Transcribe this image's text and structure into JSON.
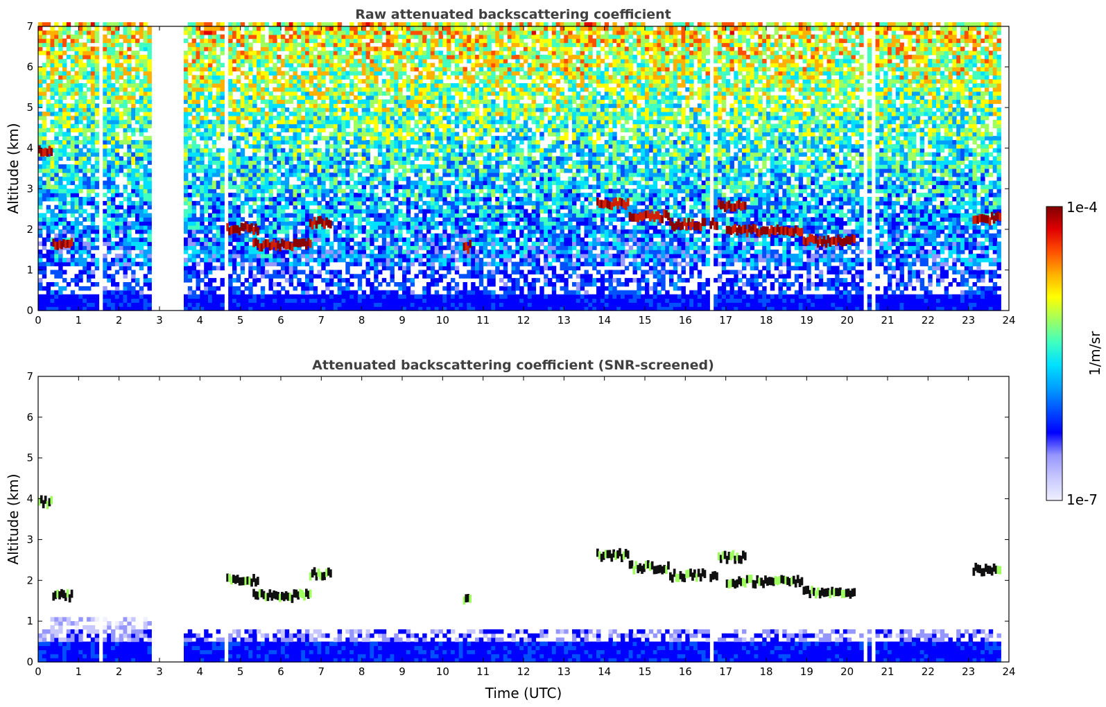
{
  "chart_data": [
    {
      "type": "heatmap",
      "title": "Raw attenuated backscattering coefficient",
      "xlabel": "",
      "ylabel": "Altitude (km)",
      "xlim": [
        0,
        24
      ],
      "ylim": [
        0,
        7
      ],
      "xticks": [
        "0",
        "1",
        "2",
        "3",
        "4",
        "5",
        "6",
        "7",
        "8",
        "9",
        "10",
        "11",
        "12",
        "13",
        "14",
        "15",
        "16",
        "17",
        "18",
        "19",
        "20",
        "21",
        "22",
        "23",
        "24"
      ],
      "yticks": [
        "0",
        "1",
        "2",
        "3",
        "4",
        "5",
        "6",
        "7"
      ],
      "screened": false,
      "cloud_layers": [
        {
          "t0": 0.0,
          "t1": 0.35,
          "alt": 3.9
        },
        {
          "t0": 0.35,
          "t1": 0.85,
          "alt": 1.6
        },
        {
          "t0": 4.65,
          "t1": 5.4,
          "alt": 2.0
        },
        {
          "t0": 5.3,
          "t1": 6.7,
          "alt": 1.6
        },
        {
          "t0": 6.7,
          "t1": 7.2,
          "alt": 2.15
        },
        {
          "t0": 10.5,
          "t1": 10.7,
          "alt": 1.55
        },
        {
          "t0": 13.8,
          "t1": 14.6,
          "alt": 2.6
        },
        {
          "t0": 14.6,
          "t1": 15.6,
          "alt": 2.3
        },
        {
          "t0": 15.6,
          "t1": 16.8,
          "alt": 2.1
        },
        {
          "t0": 16.8,
          "t1": 17.5,
          "alt": 2.55
        },
        {
          "t0": 17.0,
          "t1": 18.9,
          "alt": 1.95
        },
        {
          "t0": 18.9,
          "t1": 20.2,
          "alt": 1.7
        },
        {
          "t0": 23.1,
          "t1": 23.8,
          "alt": 2.25
        }
      ],
      "data_gaps": [
        {
          "t0": 1.45,
          "t1": 1.55
        },
        {
          "t0": 2.75,
          "t1": 3.6
        },
        {
          "t0": 4.6,
          "t1": 4.65
        },
        {
          "t0": 16.5,
          "t1": 16.6
        },
        {
          "t0": 20.35,
          "t1": 20.45
        },
        {
          "t0": 20.6,
          "t1": 20.65
        }
      ],
      "data_end_hour": 23.8
    },
    {
      "type": "heatmap",
      "title": "Attenuated backscattering coefficient (SNR-screened)",
      "xlabel": "Time (UTC)",
      "ylabel": "Altitude (km)",
      "xlim": [
        0,
        24
      ],
      "ylim": [
        0,
        7
      ],
      "xticks": [
        "0",
        "1",
        "2",
        "3",
        "4",
        "5",
        "6",
        "7",
        "8",
        "9",
        "10",
        "11",
        "12",
        "13",
        "14",
        "15",
        "16",
        "17",
        "18",
        "19",
        "20",
        "21",
        "22",
        "23",
        "24"
      ],
      "yticks": [
        "0",
        "1",
        "2",
        "3",
        "4",
        "5",
        "6",
        "7"
      ],
      "screened": true,
      "cloud_layers": [
        {
          "t0": 0.0,
          "t1": 0.35,
          "alt": 3.9
        },
        {
          "t0": 0.35,
          "t1": 0.85,
          "alt": 1.6
        },
        {
          "t0": 4.65,
          "t1": 5.4,
          "alt": 2.0
        },
        {
          "t0": 5.3,
          "t1": 6.7,
          "alt": 1.6
        },
        {
          "t0": 6.7,
          "t1": 7.2,
          "alt": 2.15
        },
        {
          "t0": 10.5,
          "t1": 10.7,
          "alt": 1.55
        },
        {
          "t0": 13.8,
          "t1": 14.6,
          "alt": 2.6
        },
        {
          "t0": 14.6,
          "t1": 15.6,
          "alt": 2.3
        },
        {
          "t0": 15.6,
          "t1": 16.8,
          "alt": 2.1
        },
        {
          "t0": 16.8,
          "t1": 17.5,
          "alt": 2.55
        },
        {
          "t0": 17.0,
          "t1": 18.9,
          "alt": 1.95
        },
        {
          "t0": 18.9,
          "t1": 20.2,
          "alt": 1.7
        },
        {
          "t0": 23.1,
          "t1": 23.8,
          "alt": 2.25
        }
      ],
      "data_gaps": [
        {
          "t0": 1.45,
          "t1": 1.55
        },
        {
          "t0": 2.75,
          "t1": 3.6
        },
        {
          "t0": 4.6,
          "t1": 4.65
        },
        {
          "t0": 16.5,
          "t1": 16.6
        },
        {
          "t0": 20.35,
          "t1": 20.45
        },
        {
          "t0": 20.6,
          "t1": 20.65
        }
      ],
      "data_end_hour": 23.8
    }
  ],
  "colorbar": {
    "label": "1/m/sr",
    "max_label": "1e-4",
    "min_label": "1e-7",
    "colors": [
      "#f0f0ff",
      "#c8c8ff",
      "#9696ff",
      "#0000ff",
      "#0050ff",
      "#00a0ff",
      "#00e0ff",
      "#40ffc0",
      "#a0ff60",
      "#ffff00",
      "#ffb000",
      "#ff5000",
      "#e00000",
      "#800000"
    ]
  }
}
